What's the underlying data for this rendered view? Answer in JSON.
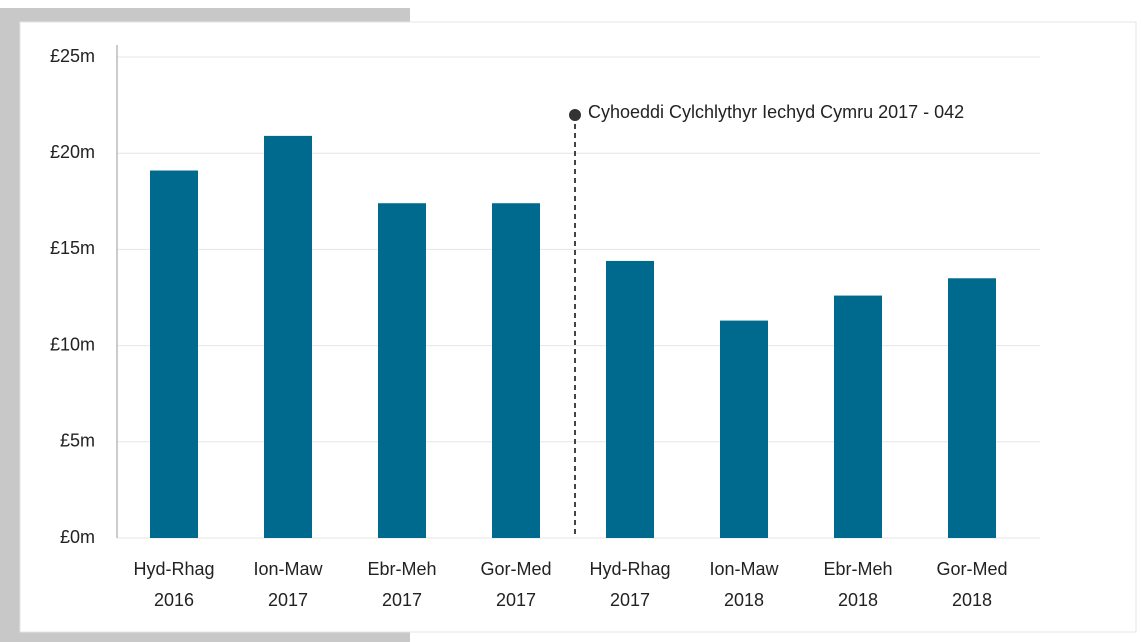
{
  "chart_data": {
    "type": "bar",
    "categories": [
      [
        "Hyd-Rhag",
        "2016"
      ],
      [
        "Ion-Maw",
        "2017"
      ],
      [
        "Ebr-Meh",
        "2017"
      ],
      [
        "Gor-Med",
        "2017"
      ],
      [
        "Hyd-Rhag",
        "2017"
      ],
      [
        "Ion-Maw",
        "2018"
      ],
      [
        "Ebr-Meh",
        "2018"
      ],
      [
        "Gor-Med",
        "2018"
      ]
    ],
    "values": [
      19.1,
      20.9,
      17.4,
      17.4,
      14.4,
      11.3,
      12.6,
      13.5
    ],
    "color": "#006a8e",
    "ylim": [
      0,
      25
    ],
    "yticks": [
      {
        "value": 0,
        "label": "£0m"
      },
      {
        "value": 5,
        "label": "£5m"
      },
      {
        "value": 10,
        "label": "£10m"
      },
      {
        "value": 15,
        "label": "£15m"
      },
      {
        "value": 20,
        "label": "£20m"
      },
      {
        "value": 25,
        "label": "£25m"
      }
    ],
    "grid": true,
    "annotation": "Cyhoeddi Cylchlythyr Iechyd Cymru 2017 - 042"
  }
}
